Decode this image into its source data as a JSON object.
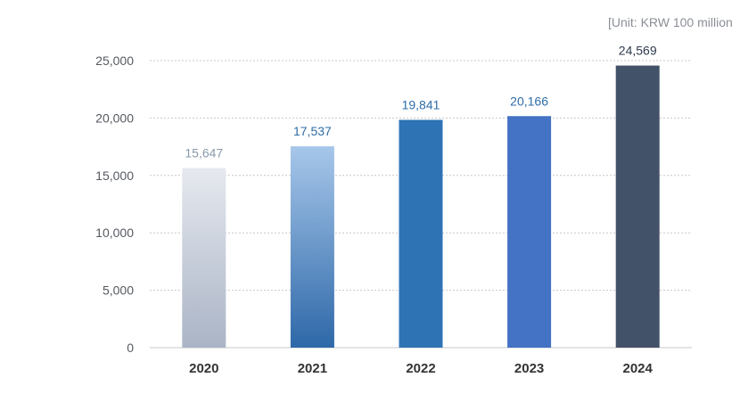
{
  "unit_label": "[Unit: KRW 100 million",
  "colors": {
    "grid": "#c8c8c8",
    "axis": "#c8c8c8",
    "bar_2020_top": "#e6e9ef",
    "bar_2020_bottom": "#aab4c6",
    "bar_2021_top": "#a7c7ea",
    "bar_2021_bottom": "#2e68a8",
    "bar_2022": "#2e74b5",
    "bar_2023": "#4472c4",
    "bar_2024": "#425268",
    "label_2020": "#8a9aac",
    "label_2021": "#2e6da8",
    "label_2022": "#2e6da8",
    "label_2023": "#2e6da8",
    "label_2024": "#2f3b4e"
  },
  "chart_data": {
    "type": "bar",
    "categories": [
      "2020",
      "2021",
      "2022",
      "2023",
      "2024"
    ],
    "values": [
      15647,
      17537,
      19841,
      20166,
      24569
    ],
    "value_labels": [
      "15,647",
      "17,537",
      "19,841",
      "20,166",
      "24,569"
    ],
    "ylim": [
      0,
      25000
    ],
    "yticks": [
      0,
      5000,
      10000,
      15000,
      20000,
      25000
    ],
    "ytick_labels": [
      "0",
      "5,000",
      "10,000",
      "15,000",
      "20,000",
      "25,000"
    ],
    "grid": true,
    "grid_style": "dotted",
    "legend": "none"
  }
}
